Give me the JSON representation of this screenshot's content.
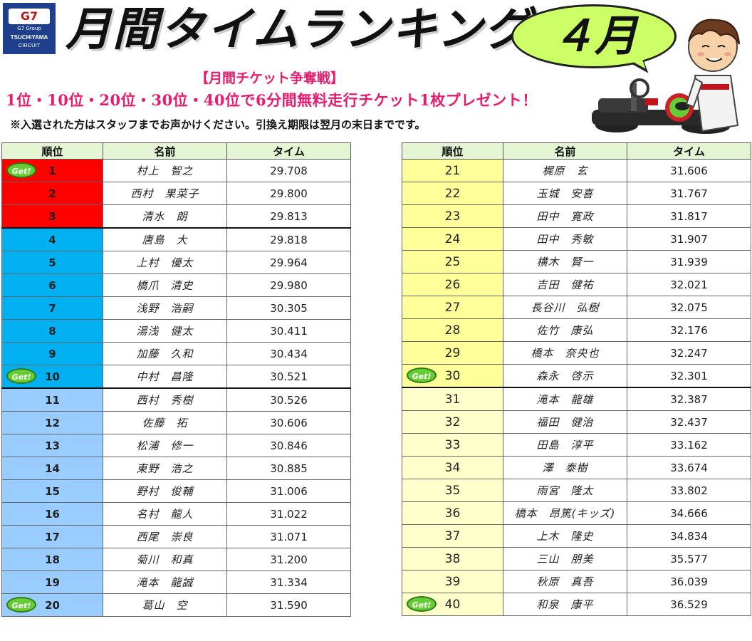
{
  "logo": {
    "mark": "G7",
    "group": "G7 Group",
    "name": "TSUCHIYAMA",
    "sub": "CIRCUIT"
  },
  "header": {
    "title": "月間タイムランキング",
    "month": "４月"
  },
  "ticket": {
    "title": "【月間チケット争奪戦】",
    "description": "1位・10位・20位・30位・40位で6分間無料走行チケット1枚プレゼント！",
    "note": "※入選された方はスタッフまでお声かけください。引換え期限は翌月の末日までです。"
  },
  "badge_label": "Get!",
  "columns": {
    "position": "順位",
    "name": "名前",
    "time": "タイム"
  },
  "colors": {
    "top3": "#ff0000",
    "rank4_10": "#00b0f0",
    "rank11_20": "#99ccff",
    "rank21_30": "#ffff99",
    "rank31_40": "#ffffcc",
    "header": "#e4f5d4",
    "badge": "#66cc33"
  },
  "left_table": [
    {
      "pos": "1",
      "name": "村上　智之",
      "time": "29.708",
      "badge": true
    },
    {
      "pos": "2",
      "name": "西村　果菜子",
      "time": "29.800",
      "badge": false
    },
    {
      "pos": "3",
      "name": "清水　朗",
      "time": "29.813",
      "badge": false
    },
    {
      "pos": "4",
      "name": "唐島　大",
      "time": "29.818",
      "badge": false
    },
    {
      "pos": "5",
      "name": "上村　優太",
      "time": "29.964",
      "badge": false
    },
    {
      "pos": "6",
      "name": "橋爪　清史",
      "time": "29.980",
      "badge": false
    },
    {
      "pos": "7",
      "name": "浅野　浩嗣",
      "time": "30.305",
      "badge": false
    },
    {
      "pos": "8",
      "name": "湯浅　健太",
      "time": "30.411",
      "badge": false
    },
    {
      "pos": "9",
      "name": "加藤　久和",
      "time": "30.434",
      "badge": false
    },
    {
      "pos": "10",
      "name": "中村　昌隆",
      "time": "30.521",
      "badge": true
    },
    {
      "pos": "11",
      "name": "西村　秀樹",
      "time": "30.526",
      "badge": false
    },
    {
      "pos": "12",
      "name": "佐藤　拓",
      "time": "30.606",
      "badge": false
    },
    {
      "pos": "13",
      "name": "松浦　修一",
      "time": "30.846",
      "badge": false
    },
    {
      "pos": "14",
      "name": "東野　浩之",
      "time": "30.885",
      "badge": false
    },
    {
      "pos": "15",
      "name": "野村　俊輔",
      "time": "31.006",
      "badge": false
    },
    {
      "pos": "16",
      "name": "名村　龍人",
      "time": "31.022",
      "badge": false
    },
    {
      "pos": "17",
      "name": "西尾　崇良",
      "time": "31.071",
      "badge": false
    },
    {
      "pos": "18",
      "name": "菊川　和真",
      "time": "31.200",
      "badge": false
    },
    {
      "pos": "19",
      "name": "滝本　龍誠",
      "time": "31.334",
      "badge": false
    },
    {
      "pos": "20",
      "name": "葛山　空",
      "time": "31.590",
      "badge": true
    }
  ],
  "right_table": [
    {
      "pos": "21",
      "name": "梶原　玄",
      "time": "31.606",
      "badge": false
    },
    {
      "pos": "22",
      "name": "玉城　安喜",
      "time": "31.767",
      "badge": false
    },
    {
      "pos": "23",
      "name": "田中　寛政",
      "time": "31.817",
      "badge": false
    },
    {
      "pos": "24",
      "name": "田中　秀敏",
      "time": "31.907",
      "badge": false
    },
    {
      "pos": "25",
      "name": "横木　賢一",
      "time": "31.939",
      "badge": false
    },
    {
      "pos": "26",
      "name": "吉田　健祐",
      "time": "32.021",
      "badge": false
    },
    {
      "pos": "27",
      "name": "長谷川　弘樹",
      "time": "32.075",
      "badge": false
    },
    {
      "pos": "28",
      "name": "佐竹　康弘",
      "time": "32.176",
      "badge": false
    },
    {
      "pos": "29",
      "name": "橋本　奈央也",
      "time": "32.247",
      "badge": false
    },
    {
      "pos": "30",
      "name": "森永　啓示",
      "time": "32.301",
      "badge": true
    },
    {
      "pos": "31",
      "name": "滝本　龍雄",
      "time": "32.387",
      "badge": false
    },
    {
      "pos": "32",
      "name": "福田　健治",
      "time": "32.437",
      "badge": false
    },
    {
      "pos": "33",
      "name": "田島　淳平",
      "time": "33.162",
      "badge": false
    },
    {
      "pos": "34",
      "name": "澤　泰樹",
      "time": "33.674",
      "badge": false
    },
    {
      "pos": "35",
      "name": "雨宮　隆太",
      "time": "33.802",
      "badge": false
    },
    {
      "pos": "36",
      "name": "橋本　昂篤(キッズ)",
      "time": "34.666",
      "badge": false
    },
    {
      "pos": "37",
      "name": "上木　隆史",
      "time": "34.834",
      "badge": false
    },
    {
      "pos": "38",
      "name": "三山　朋美",
      "time": "35.577",
      "badge": false
    },
    {
      "pos": "39",
      "name": "秋原　真吾",
      "time": "36.039",
      "badge": false
    },
    {
      "pos": "40",
      "name": "和泉　康平",
      "time": "36.529",
      "badge": true
    }
  ]
}
